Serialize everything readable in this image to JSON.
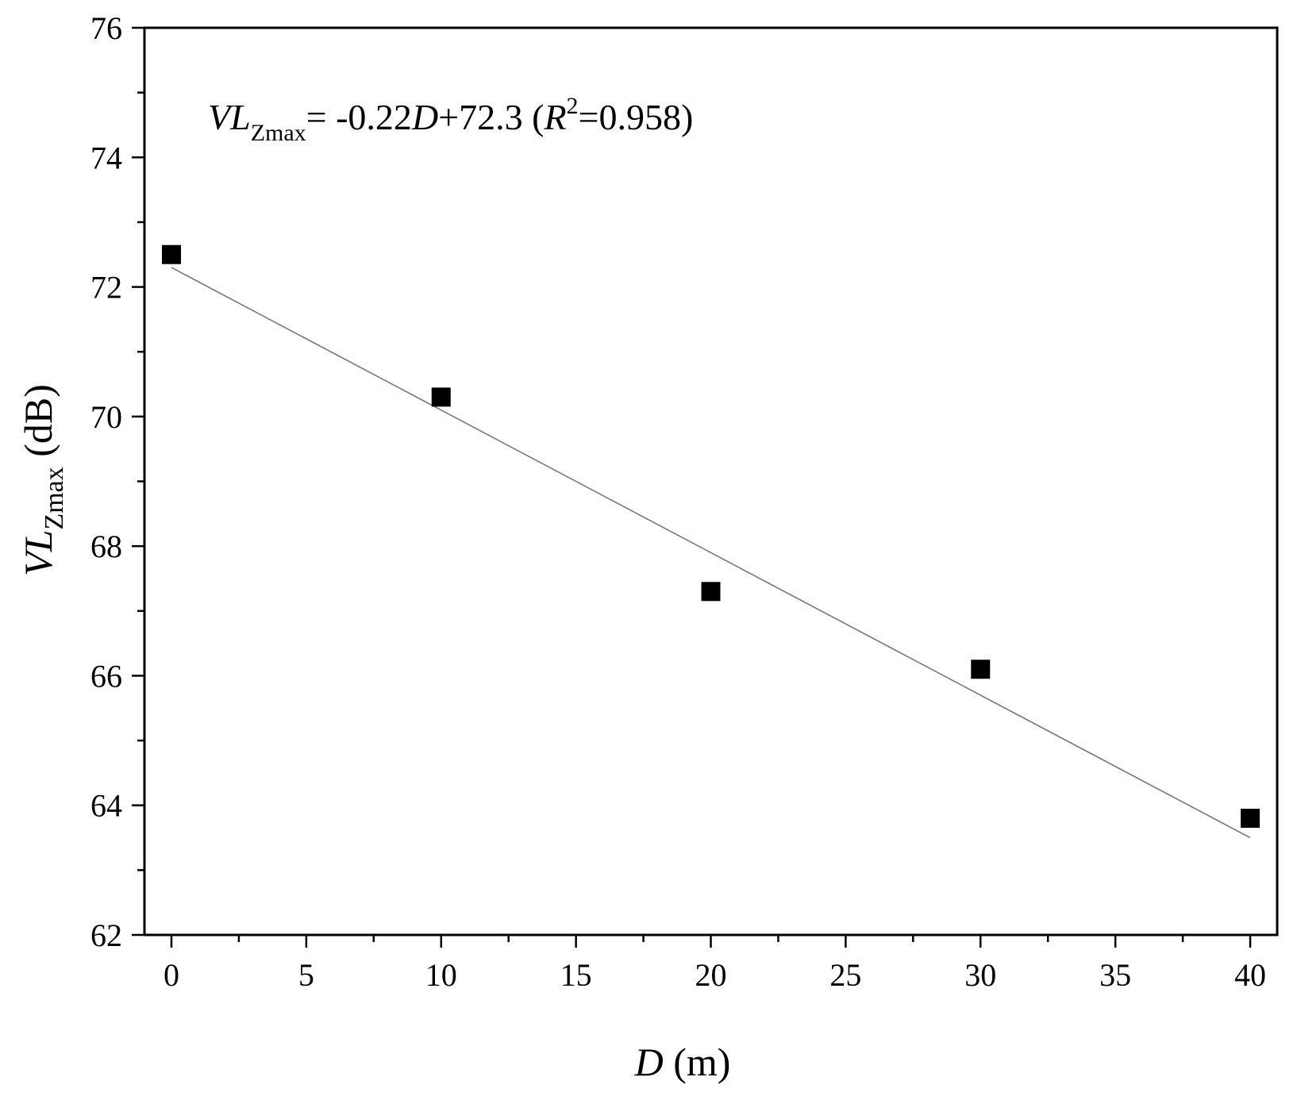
{
  "chart_data": {
    "type": "scatter",
    "x_label": {
      "var": "D",
      "unit": " (m)"
    },
    "y_label": {
      "var": "VL",
      "sub": "Zmax",
      "unit": " (dB)"
    },
    "xlim": [
      -1,
      41
    ],
    "ylim": [
      62,
      76
    ],
    "x_ticks": [
      0,
      5,
      10,
      15,
      20,
      25,
      30,
      35,
      40
    ],
    "y_ticks": [
      62,
      64,
      66,
      68,
      70,
      72,
      74,
      76
    ],
    "x_minor_step": 2.5,
    "y_minor_step": 1,
    "series": [
      {
        "marker": "square",
        "color": "#000000",
        "points": [
          {
            "x": 0,
            "y": 72.5
          },
          {
            "x": 10,
            "y": 70.3
          },
          {
            "x": 20,
            "y": 67.3
          },
          {
            "x": 30,
            "y": 66.1
          },
          {
            "x": 40,
            "y": 63.8
          }
        ]
      }
    ],
    "fit": {
      "slope": -0.22,
      "intercept": 72.3,
      "x_range": [
        0,
        40
      ],
      "color": "#777777"
    },
    "annotation": {
      "v": "VL",
      "sub": "Zmax",
      "eq1": "= -0.22",
      "d": "D",
      "eq2": "+72.3 (",
      "r": "R",
      "sup": "2",
      "eq3": "=0.958)"
    }
  }
}
